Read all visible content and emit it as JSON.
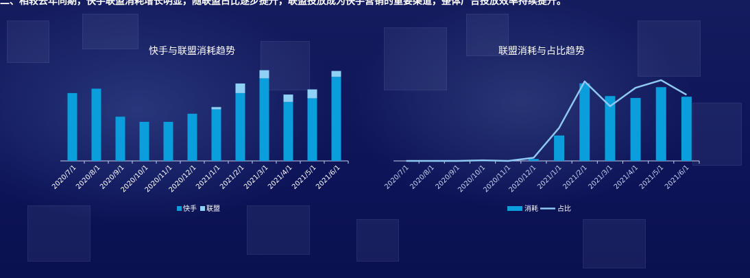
{
  "header": {
    "text": "二、相较去年同期，快手联盟消耗增长明显，随联盟占比逐步提升，联盟投放成为快手营销的重要渠道，整体广告投放效率持续提升。"
  },
  "colors": {
    "kuaishou": "#0a9edc",
    "lianmeng": "#8fd0f5",
    "consumption": "#0a9edc",
    "ratio_line": "#8fc8f2",
    "axis": "#c8d2f0",
    "text": "#ffffff"
  },
  "chart_data": [
    {
      "type": "bar",
      "stacked": true,
      "title": "快手与联盟消耗趋势",
      "categories": [
        "2020/7/1",
        "2020/8/1",
        "2020/9/1",
        "2020/10/1",
        "2020/11/1",
        "2020/12/1",
        "2021/1/1",
        "2021/2/1",
        "2021/3/1",
        "2021/4/1",
        "2021/5/1",
        "2021/6/1"
      ],
      "series": [
        {
          "name": "快手",
          "values": [
            92,
            98,
            60,
            53,
            53,
            64,
            70,
            92,
            112,
            80,
            85,
            114
          ]
        },
        {
          "name": "联盟",
          "values": [
            0,
            0,
            0,
            0,
            0,
            0,
            3,
            13,
            11,
            10,
            12,
            8
          ]
        }
      ],
      "ylim": [
        0,
        130
      ],
      "legend": "bottom",
      "grid": false
    },
    {
      "type": "bar",
      "title": "联盟消耗与占比趋势",
      "categories": [
        "2020/7/1",
        "2020/8/1",
        "2020/9/1",
        "2020/10/1",
        "2020/11/1",
        "2020/12/1",
        "2021/1/1",
        "2021/2/1",
        "2021/3/1",
        "2021/4/1",
        "2021/5/1",
        "2021/6/1"
      ],
      "series": [
        {
          "name": "消耗",
          "type": "bar",
          "values": [
            0,
            0,
            0,
            0,
            0,
            3,
            40,
            122,
            102,
            99,
            116,
            101
          ]
        },
        {
          "name": "占比",
          "type": "line",
          "values": [
            0,
            0,
            0,
            1,
            0,
            5,
            52,
            125,
            86,
            115,
            127,
            104
          ]
        }
      ],
      "ylim": [
        0,
        140
      ],
      "legend": "bottom",
      "grid": false
    }
  ]
}
